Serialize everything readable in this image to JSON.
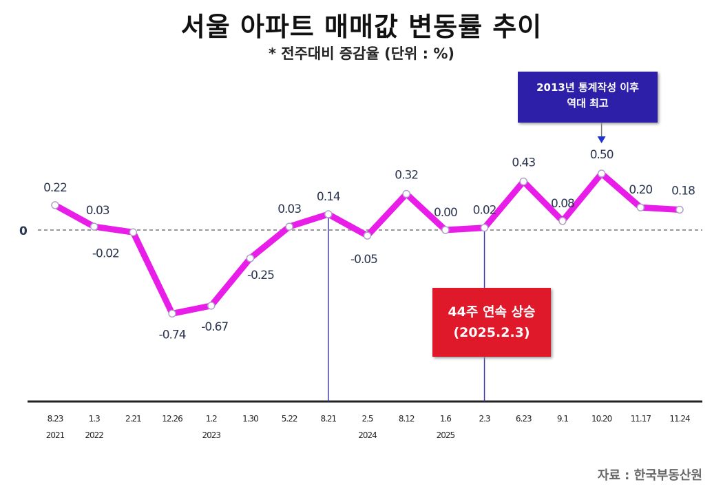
{
  "title": "서울 아파트 매매값 변동률 추이",
  "subtitle": "* 전주대비 증감율 (단위 : %)",
  "source": "자료 : 한국부동산원",
  "annotations": {
    "record_line1": "2013년 통계작성 이후",
    "record_line2": "역대 최고",
    "streak_line1": "44주 연속 상승",
    "streak_line2": "(2025.2.3)"
  },
  "colors": {
    "line": "#e81ee8",
    "record_box": "#2d1fa8",
    "streak_box": "#e0192a",
    "guide": "#3a3aa8"
  },
  "chart_data": {
    "type": "line",
    "title": "서울 아파트 매매값 변동률 추이",
    "subtitle": "* 전주대비 증감율 (단위 : %)",
    "categories": [
      "8.23 2021",
      "1.3 2022",
      "2.21",
      "12.26",
      "1.2 2023",
      "1.30",
      "5.22",
      "8.21",
      "2.5 2024",
      "8.12",
      "1.6 2025",
      "2.3",
      "6.23",
      "9.1",
      "10.20",
      "11.17",
      "11.24"
    ],
    "tick_labels": [
      [
        "8.23",
        "2021"
      ],
      [
        "1.3",
        "2022"
      ],
      [
        "2.21",
        ""
      ],
      [
        "12.26",
        ""
      ],
      [
        "1.2",
        "2023"
      ],
      [
        "1.30",
        ""
      ],
      [
        "5.22",
        ""
      ],
      [
        "8.21",
        ""
      ],
      [
        "2.5",
        "2024"
      ],
      [
        "8.12",
        ""
      ],
      [
        "1.6",
        "2025"
      ],
      [
        "2.3",
        ""
      ],
      [
        "6.23",
        ""
      ],
      [
        "9.1",
        ""
      ],
      [
        "10.20",
        ""
      ],
      [
        "11.17",
        ""
      ],
      [
        "11.24",
        ""
      ]
    ],
    "values": [
      0.22,
      0.03,
      -0.02,
      -0.74,
      -0.67,
      -0.25,
      0.03,
      0.14,
      -0.05,
      0.32,
      0.0,
      0.02,
      0.43,
      0.08,
      0.5,
      0.2,
      0.18
    ],
    "value_labels": [
      "0.22",
      "0.03",
      "-0.02",
      "-0.74",
      "-0.67",
      "-0.25",
      "0.03",
      "0.14",
      "-0.05",
      "0.32",
      "0.00",
      "0.02",
      "0.43",
      "0.08",
      "0.50",
      "0.20",
      "0.18"
    ],
    "zero_label": "0",
    "reference_line": 0,
    "highlight_categories": [
      "8.21",
      "2.3"
    ],
    "ylim": [
      -1.52,
      0.6
    ],
    "grid": false
  }
}
